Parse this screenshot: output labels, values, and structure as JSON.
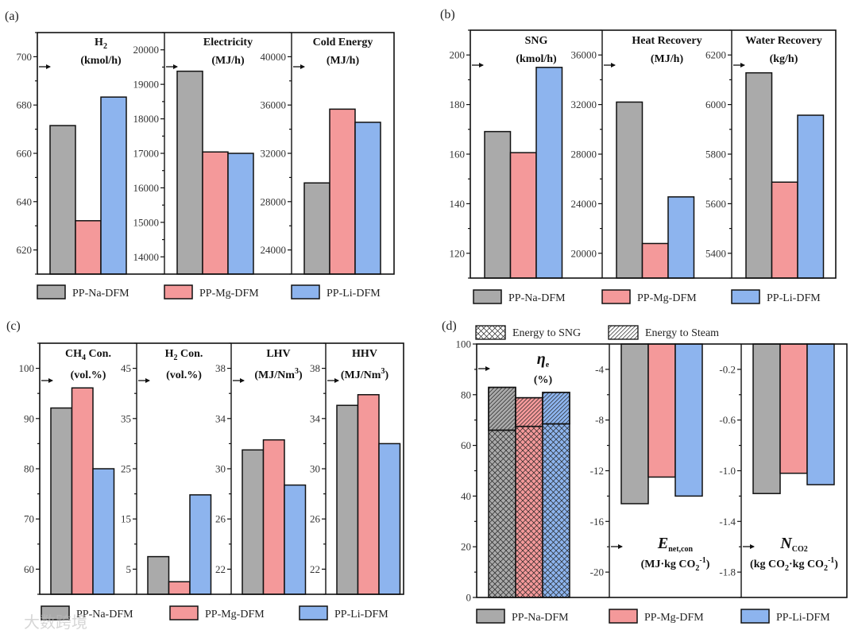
{
  "colors": {
    "PP-Na-DFM": "#aaaaaa",
    "PP-Mg-DFM": "#f4999a",
    "PP-Li-DFM": "#8db4ee"
  },
  "watermark": "大数跨境",
  "chart_data": [
    {
      "type": "bar",
      "label": "(a)",
      "legend": [
        "PP-Na-DFM",
        "PP-Mg-DFM",
        "PP-Li-DFM"
      ],
      "legend_placement": "bottom",
      "subplots": [
        {
          "title_lines": [
            [
              {
                "t": "H"
              },
              {
                "t": "2",
                "sub": true
              }
            ],
            [
              {
                "t": "(kmol/h)"
              }
            ]
          ],
          "ylim": [
            610,
            710
          ],
          "ticks": [
            "620",
            "640",
            "660",
            "680",
            "700"
          ],
          "values": [
            671.5,
            632.1,
            683.3
          ]
        },
        {
          "title_lines": [
            [
              {
                "t": "Electricity"
              }
            ],
            [
              {
                "t": "(MJ/h)"
              }
            ]
          ],
          "ylim": [
            13500,
            20500
          ],
          "ticks": [
            "14000",
            "15000",
            "16000",
            "17000",
            "18000",
            "19000",
            "20000"
          ],
          "values": [
            19380,
            17040,
            17000
          ]
        },
        {
          "title_lines": [
            [
              {
                "t": "Cold Energy"
              }
            ],
            [
              {
                "t": "(MJ/h)"
              }
            ]
          ],
          "ylim": [
            22000,
            42000
          ],
          "ticks": [
            "24000",
            "28000",
            "32000",
            "36000",
            "40000"
          ],
          "values": [
            29550,
            35660,
            34570
          ]
        }
      ]
    },
    {
      "type": "bar",
      "label": "(b)",
      "legend": [
        "PP-Na-DFM",
        "PP-Mg-DFM",
        "PP-Li-DFM"
      ],
      "legend_placement": "bottom",
      "subplots": [
        {
          "title_lines": [
            [
              {
                "t": "SNG"
              }
            ],
            [
              {
                "t": "(kmol/h)"
              }
            ]
          ],
          "ylim": [
            110,
            210
          ],
          "ticks": [
            "120",
            "140",
            "160",
            "180",
            "200"
          ],
          "values": [
            169.1,
            160.6,
            195.0
          ]
        },
        {
          "title_lines": [
            [
              {
                "t": "Heat Recovery"
              }
            ],
            [
              {
                "t": "(MJ/h)"
              }
            ]
          ],
          "ylim": [
            18000,
            38000
          ],
          "ticks": [
            "20000",
            "24000",
            "28000",
            "32000",
            "36000"
          ],
          "values": [
            32200,
            20790,
            24550
          ]
        },
        {
          "title_lines": [
            [
              {
                "t": "Water Recovery"
              }
            ],
            [
              {
                "t": "(kg/h)"
              }
            ]
          ],
          "ylim": [
            5300,
            6300
          ],
          "ticks": [
            "5400",
            "5600",
            "5800",
            "6000",
            "6200"
          ],
          "values": [
            6128,
            5687,
            5957
          ]
        }
      ]
    },
    {
      "type": "bar",
      "label": "(c)",
      "legend": [
        "PP-Na-DFM",
        "PP-Mg-DFM",
        "PP-Li-DFM"
      ],
      "legend_placement": "bottom",
      "subplots": [
        {
          "title_lines": [
            [
              {
                "t": "CH"
              },
              {
                "t": "4",
                "sub": true
              },
              {
                "t": " Con."
              }
            ],
            [
              {
                "t": "(vol.%)"
              }
            ]
          ],
          "ylim": [
            55,
            105
          ],
          "ticks": [
            "60",
            "70",
            "80",
            "90",
            "100"
          ],
          "values": [
            92.1,
            96.1,
            80.0
          ]
        },
        {
          "title_lines": [
            [
              {
                "t": "H"
              },
              {
                "t": "2",
                "sub": true
              },
              {
                "t": " Con."
              }
            ],
            [
              {
                "t": "(vol.%)"
              }
            ]
          ],
          "ylim": [
            0,
            50
          ],
          "ticks": [
            "5",
            "15",
            "25",
            "35",
            "45"
          ],
          "values": [
            7.5,
            2.5,
            19.8
          ]
        },
        {
          "title_lines": [
            [
              {
                "t": "LHV"
              }
            ],
            [
              {
                "t": "(MJ/Nm"
              },
              {
                "t": "3",
                "sup": true
              },
              {
                "t": ")"
              }
            ]
          ],
          "ylim": [
            20,
            40
          ],
          "ticks": [
            "22",
            "26",
            "30",
            "34",
            "38"
          ],
          "values": [
            31.5,
            32.3,
            28.7
          ]
        },
        {
          "title_lines": [
            [
              {
                "t": "HHV"
              }
            ],
            [
              {
                "t": "(MJ/Nm"
              },
              {
                "t": "3",
                "sup": true
              },
              {
                "t": ")"
              }
            ]
          ],
          "ylim": [
            20,
            40
          ],
          "ticks": [
            "22",
            "26",
            "30",
            "34",
            "38"
          ],
          "values": [
            35.05,
            35.9,
            32.0
          ]
        }
      ]
    },
    {
      "type": "bar",
      "label": "(d)",
      "legend": [
        "PP-Na-DFM",
        "PP-Mg-DFM",
        "PP-Li-DFM"
      ],
      "legend_placement": "bottom",
      "pattern_legend": [
        "Energy to SNG",
        "Energy to Steam"
      ],
      "subplots": [
        {
          "title_lines": [
            [
              {
                "t": "η",
                "i": true
              },
              {
                "t": "e",
                "sub": true
              }
            ],
            [
              {
                "t": "(%)"
              }
            ]
          ],
          "ylim": [
            0,
            100
          ],
          "ticks": [
            "0",
            "20",
            "40",
            "60",
            "80",
            "100"
          ],
          "stacked": true,
          "values": [
            66.0,
            67.5,
            68.5
          ],
          "values_top": [
            16.9,
            11.3,
            12.4
          ]
        },
        {
          "title_lines": [
            [
              {
                "t": "E",
                "i": true
              },
              {
                "t": "net,con",
                "sub": true
              }
            ],
            [
              {
                "t": "(MJ·kg CO"
              },
              {
                "t": "2",
                "sub": true
              },
              {
                "t": "-1",
                "sup": true
              },
              {
                "t": ")"
              }
            ]
          ],
          "ylim": [
            -22,
            -2
          ],
          "ticks": [
            "-20",
            "-16",
            "-12",
            "-8",
            "-4"
          ],
          "values": [
            -14.6,
            -12.5,
            -14.0
          ]
        },
        {
          "title_lines": [
            [
              {
                "t": "N",
                "i": true
              },
              {
                "t": "CO2",
                "sub": true
              }
            ],
            [
              {
                "t": "(kg CO"
              },
              {
                "t": "2",
                "sub": true
              },
              {
                "t": "·kg CO"
              },
              {
                "t": "2",
                "sub": true
              },
              {
                "t": "-1",
                "sup": true
              },
              {
                "t": ")"
              }
            ]
          ],
          "ylim": [
            -2,
            0
          ],
          "ticks": [
            "-1.8",
            "-1.4",
            "-1.0",
            "-0.6",
            "-0.2"
          ],
          "values": [
            -1.18,
            -1.02,
            -1.11
          ]
        }
      ]
    }
  ]
}
